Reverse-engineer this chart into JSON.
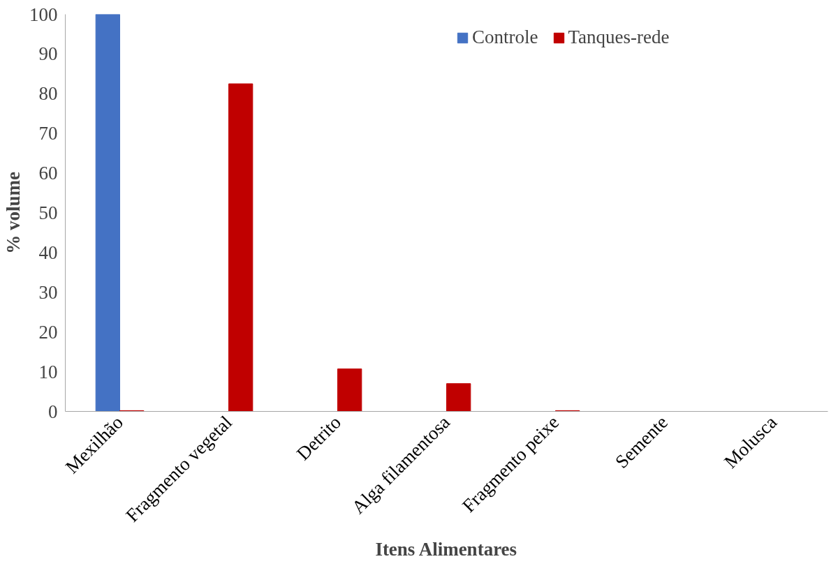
{
  "chart_data": {
    "type": "bar",
    "xlabel": "Itens Alimentares",
    "ylabel": "% volume",
    "categories": [
      "Mexilhão",
      "Fragmento vegetal",
      "Detrito",
      "Alga filamentosa",
      "Fragmento peixe",
      "Semente",
      "Molusca"
    ],
    "series": [
      {
        "name": "Controle",
        "color": "#4472c4",
        "values": [
          100,
          0,
          0,
          0,
          0,
          0,
          0
        ]
      },
      {
        "name": "Tanques-rede",
        "color": "#c00000",
        "values": [
          0.2,
          82.5,
          10.7,
          7.0,
          0.2,
          0,
          0
        ]
      }
    ],
    "ylim": [
      0,
      100
    ],
    "yticks": [
      0,
      10,
      20,
      30,
      40,
      50,
      60,
      70,
      80,
      90,
      100
    ],
    "grid": false,
    "legend": "right"
  }
}
